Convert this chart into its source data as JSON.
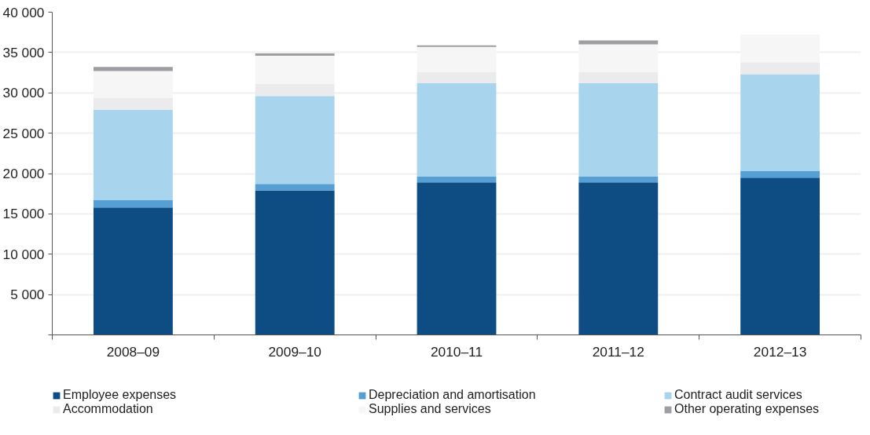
{
  "chart_data": {
    "type": "bar",
    "stacked": true,
    "categories": [
      "2008–09",
      "2009–10",
      "2010–11",
      "2011–12",
      "2012–13"
    ],
    "series": [
      {
        "name": "Employee expenses",
        "color": "#0e4d83",
        "values": [
          15800,
          17900,
          18900,
          18900,
          19500
        ]
      },
      {
        "name": "Depreciation and amortisation",
        "color": "#559fd4",
        "values": [
          900,
          800,
          700,
          700,
          800
        ]
      },
      {
        "name": "Contract audit services",
        "color": "#a9d4ee",
        "values": [
          11200,
          10900,
          11600,
          11600,
          12000
        ]
      },
      {
        "name": "Accommodation",
        "color": "#ebebed",
        "values": [
          1500,
          1500,
          1400,
          1400,
          1500
        ]
      },
      {
        "name": "Supplies and services",
        "color": "#f6f6f6",
        "values": [
          3300,
          3500,
          3100,
          3400,
          3400
        ]
      },
      {
        "name": "Other operating expenses",
        "color": "#9d9ea2",
        "values": [
          500,
          300,
          200,
          500,
          null
        ]
      }
    ],
    "ylim": [
      0,
      40000
    ],
    "yticks": [
      {
        "value": 0,
        "label": null
      },
      {
        "value": 5000,
        "label": "5 000"
      },
      {
        "value": 10000,
        "label": "10 000"
      },
      {
        "value": 15000,
        "label": "15 000"
      },
      {
        "value": 20000,
        "label": "20 000"
      },
      {
        "value": 25000,
        "label": "25 000"
      },
      {
        "value": 30000,
        "label": "30 000"
      },
      {
        "value": 35000,
        "label": "35 000"
      },
      {
        "value": 40000,
        "label": "40 000"
      }
    ],
    "grid": "y",
    "legend": "bottom"
  }
}
